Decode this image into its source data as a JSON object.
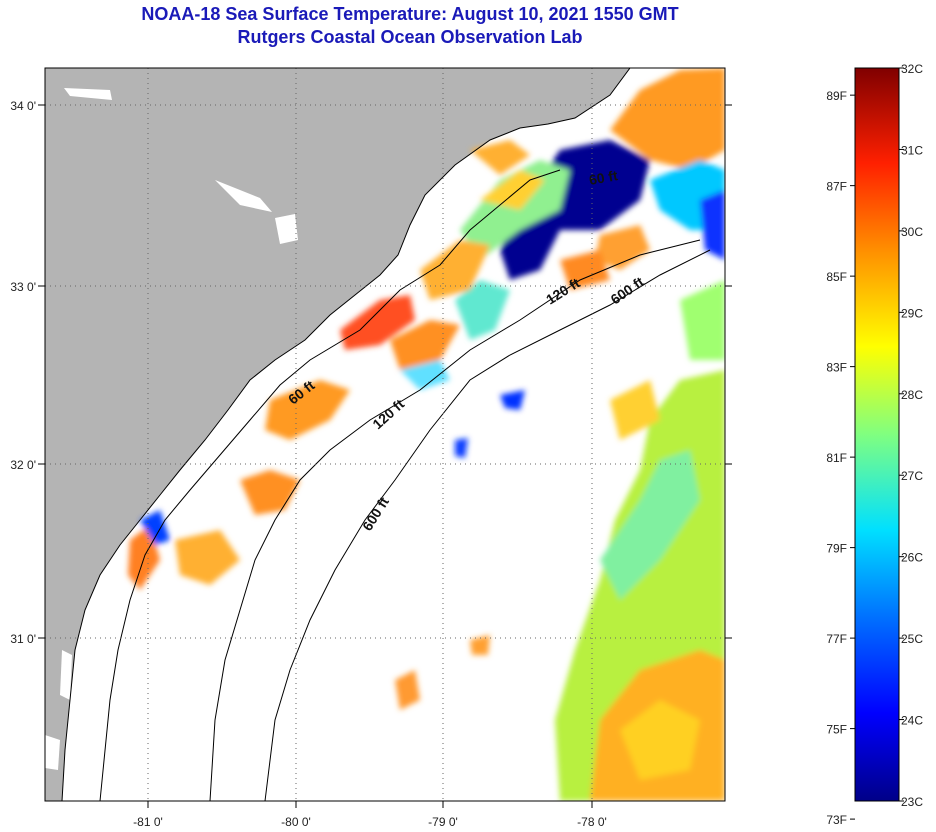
{
  "header": {
    "title": "NOAA-18 Sea Surface Temperature:  August 10, 2021 1550 GMT",
    "subtitle": "Rutgers Coastal Ocean Observation Lab"
  },
  "map": {
    "lon_labels": [
      "-81 0'",
      "-80 0'",
      "-79 0'",
      "-78 0'"
    ],
    "lat_labels": [
      "34 0'",
      "33 0'",
      "32 0'",
      "31 0'"
    ],
    "contours": [
      "60 ft",
      "120 ft",
      "600 ft",
      "60 ft",
      "120 ft",
      "600 ft"
    ],
    "colors": {
      "land": "#b4b4b4",
      "nodata": "#ffffff",
      "coast": "#000000"
    }
  },
  "colorbar": {
    "celsius": [
      "32C",
      "31C",
      "30C",
      "29C",
      "28C",
      "27C",
      "26C",
      "25C",
      "24C",
      "23C"
    ],
    "fahrenheit": [
      "89F",
      "87F",
      "85F",
      "83F",
      "81F",
      "79F",
      "77F",
      "75F",
      "73F"
    ],
    "range_c": [
      23,
      32
    ]
  }
}
